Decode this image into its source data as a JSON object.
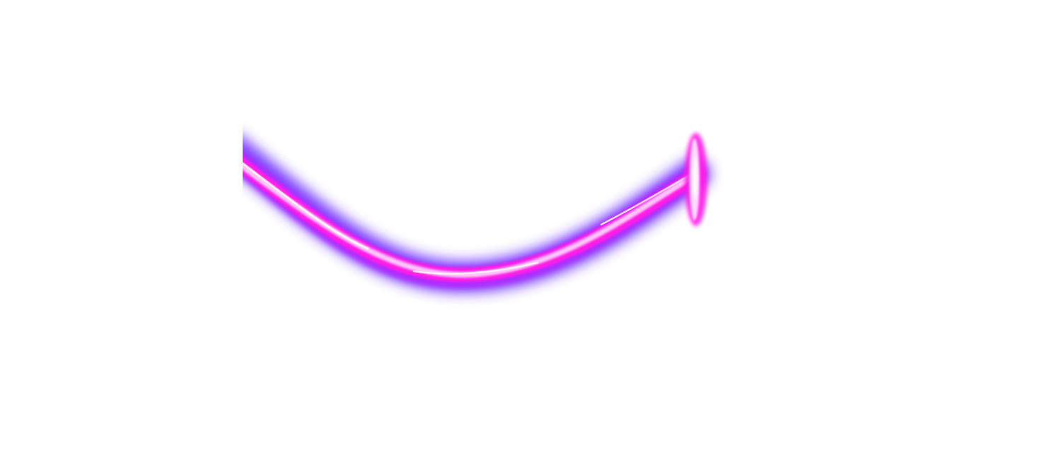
{
  "artwork": {
    "subject": "glowing-neon-arrow",
    "colors": {
      "background": "#ffffff",
      "outer_glow": "#6a2bff",
      "mid_glow": "#b12cff",
      "body": "#ff1fe6",
      "core": "#ffd9ff",
      "highlight": "#ffffff"
    }
  }
}
